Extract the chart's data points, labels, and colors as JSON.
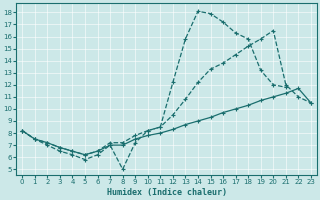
{
  "xlabel": "Humidex (Indice chaleur)",
  "bg_color": "#cce8e8",
  "line_color": "#1a6e6e",
  "xlim": [
    -0.5,
    23.5
  ],
  "ylim": [
    4.5,
    18.8
  ],
  "xticks": [
    0,
    1,
    2,
    3,
    4,
    5,
    6,
    7,
    8,
    9,
    10,
    11,
    12,
    13,
    14,
    15,
    16,
    17,
    18,
    19,
    20,
    21,
    22,
    23
  ],
  "yticks": [
    5,
    6,
    7,
    8,
    9,
    10,
    11,
    12,
    13,
    14,
    15,
    16,
    17,
    18
  ],
  "curve1_x": [
    0,
    1,
    2,
    3,
    4,
    5,
    6,
    7,
    8,
    9,
    10,
    11,
    12,
    13,
    14,
    15,
    16,
    17,
    18,
    19,
    20,
    21
  ],
  "curve1_y": [
    8.2,
    7.5,
    7.0,
    6.5,
    6.2,
    5.8,
    6.2,
    7.0,
    5.0,
    7.2,
    8.2,
    8.5,
    12.2,
    15.8,
    18.1,
    17.9,
    17.2,
    16.3,
    15.8,
    13.2,
    12.0,
    11.8
  ],
  "curve2_x": [
    0,
    1,
    2,
    3,
    4,
    5,
    6,
    7,
    8,
    9,
    10,
    11,
    12,
    13,
    14,
    15,
    16,
    17,
    18,
    19,
    20,
    21,
    22,
    23
  ],
  "curve2_y": [
    8.2,
    7.5,
    7.2,
    6.8,
    6.5,
    6.2,
    6.5,
    7.2,
    7.2,
    7.8,
    8.2,
    8.5,
    9.5,
    10.8,
    12.2,
    13.3,
    13.8,
    14.5,
    15.2,
    15.8,
    16.5,
    12.0,
    11.0,
    10.5
  ],
  "curve3_x": [
    0,
    1,
    2,
    3,
    4,
    5,
    6,
    7,
    8,
    9,
    10,
    11,
    12,
    13,
    14,
    15,
    16,
    17,
    18,
    19,
    20,
    21,
    22,
    23
  ],
  "curve3_y": [
    8.2,
    7.5,
    7.2,
    6.8,
    6.5,
    6.2,
    6.5,
    7.0,
    7.0,
    7.5,
    7.8,
    8.0,
    8.3,
    8.7,
    9.0,
    9.3,
    9.7,
    10.0,
    10.3,
    10.7,
    11.0,
    11.3,
    11.7,
    10.5
  ]
}
